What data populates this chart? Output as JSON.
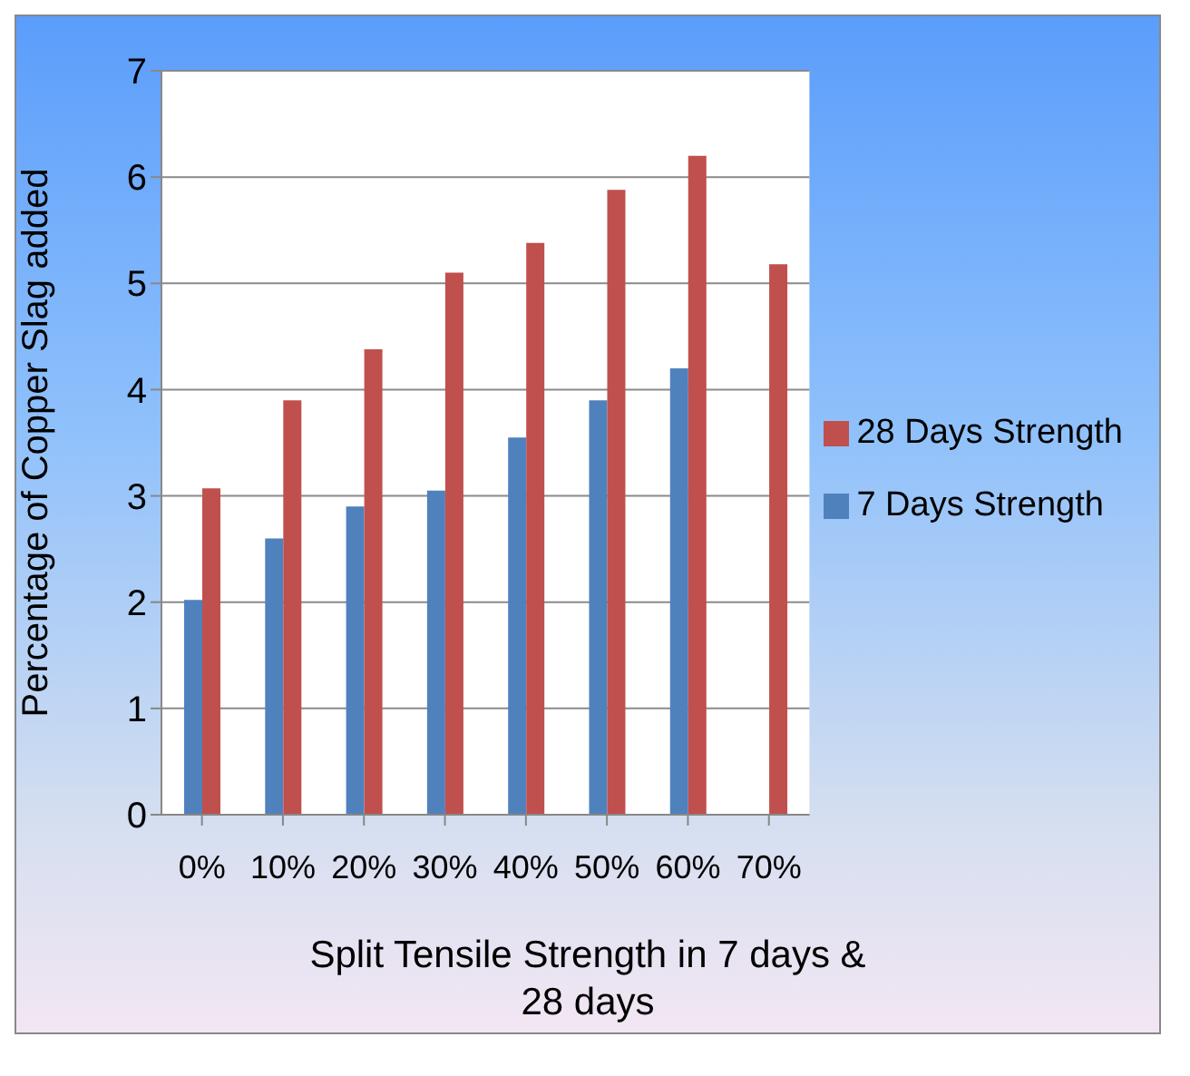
{
  "chart_data": {
    "type": "bar",
    "xlabel": "Split Tensile Strength in 7 days & 28 days",
    "ylabel": "Percentage of Copper Slag added",
    "categories": [
      "0%",
      "10%",
      "20%",
      "30%",
      "40%",
      "50%",
      "60%",
      "70%"
    ],
    "series": [
      {
        "name": "7 Days Strength",
        "color": "#4f81bd",
        "values": [
          2.02,
          2.6,
          2.9,
          3.05,
          3.55,
          3.9,
          4.2,
          null
        ]
      },
      {
        "name": "28 Days Strength",
        "color": "#c0504d",
        "values": [
          3.07,
          3.9,
          4.38,
          5.1,
          5.38,
          5.88,
          6.2,
          5.18
        ]
      }
    ],
    "ylim": [
      0,
      7
    ],
    "yticks": [
      0,
      1,
      2,
      3,
      4,
      5,
      6,
      7
    ],
    "grid": "y",
    "legend": "right"
  }
}
